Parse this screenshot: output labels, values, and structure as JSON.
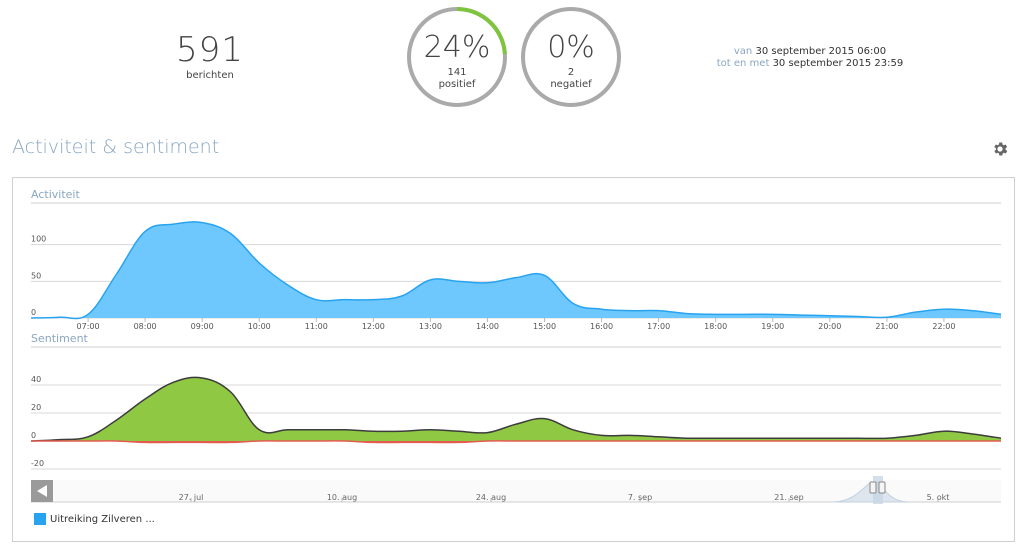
{
  "summary": {
    "count": "591",
    "count_label": "berichten"
  },
  "gauges": [
    {
      "pct": "24%",
      "fraction": 0.24,
      "count": "141",
      "label": "positief",
      "color": "#7ec53d"
    },
    {
      "pct": "0%",
      "fraction": 0.0,
      "count": "2",
      "label": "negatief",
      "color": "#e45b4f"
    }
  ],
  "daterange": {
    "from_label": "van",
    "from_value": "30 september 2015 06:00",
    "to_label": "tot en met",
    "to_value": "30 september 2015 23:59"
  },
  "section": {
    "title": "Activiteit & sentiment",
    "settings_icon": "gear-icon"
  },
  "legend": {
    "label": "Uitreiking Zilveren ...",
    "color": "#28a3ef"
  },
  "navigator": {
    "ticks": [
      "27. jul",
      "10. aug",
      "24. aug",
      "7. sep",
      "21. sep",
      "5. okt"
    ]
  },
  "chart_data": [
    {
      "type": "area",
      "title": "Activiteit",
      "x": [
        "06:00",
        "06:30",
        "07:00",
        "07:30",
        "08:00",
        "08:30",
        "09:00",
        "09:30",
        "10:00",
        "10:30",
        "11:00",
        "11:30",
        "12:00",
        "12:30",
        "13:00",
        "13:30",
        "14:00",
        "14:30",
        "15:00",
        "15:30",
        "16:00",
        "16:30",
        "17:00",
        "17:30",
        "18:00",
        "18:30",
        "19:00",
        "19:30",
        "20:00",
        "20:30",
        "21:00",
        "21:30",
        "22:00",
        "22:30",
        "23:00"
      ],
      "x_tick_labels": [
        "07:00",
        "08:00",
        "09:00",
        "10:00",
        "11:00",
        "12:00",
        "13:00",
        "14:00",
        "15:00",
        "16:00",
        "17:00",
        "18:00",
        "19:00",
        "20:00",
        "21:00",
        "22:00"
      ],
      "series": [
        {
          "values": [
            0,
            1,
            5,
            60,
            118,
            128,
            130,
            115,
            75,
            45,
            25,
            25,
            25,
            30,
            52,
            50,
            48,
            55,
            58,
            20,
            12,
            10,
            10,
            6,
            5,
            5,
            5,
            4,
            3,
            2,
            1,
            8,
            12,
            10,
            5
          ],
          "color": "#28a3ef",
          "fill": "#6fc8fd"
        }
      ],
      "y_ticks": [
        0,
        50,
        100
      ],
      "ylim": [
        0,
        150
      ]
    },
    {
      "type": "area",
      "title": "Sentiment",
      "x": [
        "06:00",
        "06:30",
        "07:00",
        "07:30",
        "08:00",
        "08:30",
        "09:00",
        "09:30",
        "10:00",
        "10:30",
        "11:00",
        "11:30",
        "12:00",
        "12:30",
        "13:00",
        "13:30",
        "14:00",
        "14:30",
        "15:00",
        "15:30",
        "16:00",
        "16:30",
        "17:00",
        "17:30",
        "18:00",
        "18:30",
        "19:00",
        "19:30",
        "20:00",
        "20:30",
        "21:00",
        "21:30",
        "22:00",
        "22:30",
        "23:00"
      ],
      "series": [
        {
          "values": [
            0,
            1,
            3,
            15,
            30,
            42,
            45,
            35,
            8,
            8,
            8,
            8,
            7,
            7,
            8,
            7,
            6,
            12,
            16,
            8,
            4,
            4,
            3,
            2,
            2,
            2,
            2,
            2,
            2,
            2,
            2,
            4,
            7,
            5,
            2
          ],
          "color": "#3c3c3c",
          "fill": "#8fc843"
        },
        {
          "values": [
            0,
            0,
            0,
            0,
            -1,
            -1,
            -1,
            -1,
            0,
            0,
            0,
            0,
            -1,
            -1,
            -1,
            -1,
            0,
            0,
            0,
            0,
            0,
            0,
            0,
            0,
            0,
            0,
            0,
            0,
            0,
            0,
            0,
            0,
            0,
            0,
            0
          ],
          "color": "#e45b4f",
          "fill": "#e45b4f"
        }
      ],
      "y_ticks": [
        -20,
        0,
        20,
        40
      ],
      "ylim": [
        -20,
        55
      ]
    }
  ]
}
